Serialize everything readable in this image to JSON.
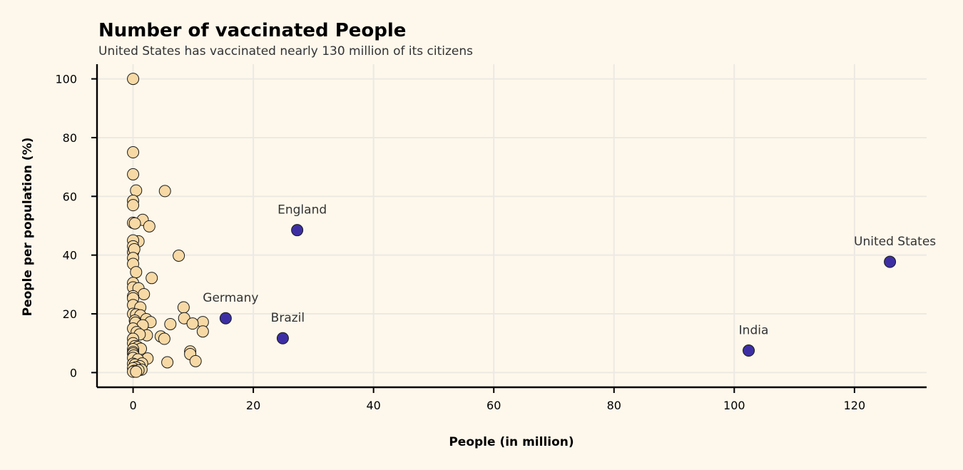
{
  "chart_data": {
    "type": "scatter",
    "title": "Number of vaccinated People",
    "subtitle": "United States has vaccinated nearly 130 million of its citizens",
    "xlabel": "People (in million)",
    "ylabel": "People per population (%)",
    "xlim": [
      -6,
      132
    ],
    "ylim": [
      -5,
      105
    ],
    "xticks": [
      0,
      20,
      40,
      60,
      80,
      100,
      120
    ],
    "yticks": [
      0,
      20,
      40,
      60,
      80,
      100
    ],
    "grid": true,
    "colors": {
      "background": "#fef8ec",
      "grid": "#ece9e4",
      "other_countries": "#f7d9a5",
      "highlight_countries": "#3d2fa3",
      "marker_edge": "#1a1a1a"
    },
    "series": [
      {
        "points": [
          [
            0,
            100
          ],
          [
            0,
            75
          ],
          [
            0,
            67.5
          ],
          [
            0.5,
            62
          ],
          [
            5.3,
            61.8
          ],
          [
            0,
            58.5
          ],
          [
            0,
            57
          ],
          [
            1.6,
            52
          ],
          [
            0,
            51
          ],
          [
            0.3,
            50.8
          ],
          [
            2.7,
            49.8
          ],
          [
            0.9,
            44.7
          ],
          [
            0,
            45
          ],
          [
            0,
            43
          ],
          [
            0,
            41
          ],
          [
            0.2,
            42
          ],
          [
            7.6,
            39.8
          ],
          [
            0,
            39
          ],
          [
            0,
            37
          ],
          [
            0.5,
            34.2
          ],
          [
            3.1,
            32.2
          ],
          [
            0,
            30.5
          ],
          [
            0,
            29
          ],
          [
            0.9,
            28.7
          ],
          [
            1.8,
            26.7
          ],
          [
            0,
            26
          ],
          [
            0,
            25.3
          ],
          [
            0,
            23
          ],
          [
            1.2,
            22.2
          ],
          [
            8.4,
            22.2
          ],
          [
            0,
            20
          ],
          [
            0.5,
            19.8
          ],
          [
            1.2,
            19.5
          ],
          [
            2.2,
            18.2
          ],
          [
            8.5,
            18.5
          ],
          [
            0.3,
            17.7
          ],
          [
            2.9,
            17.2
          ],
          [
            11.6,
            17.2
          ],
          [
            0.4,
            17
          ],
          [
            6.2,
            16.5
          ],
          [
            9.9,
            16.7
          ],
          [
            1.6,
            16.1
          ],
          [
            0,
            15
          ],
          [
            11.6,
            14
          ],
          [
            0.6,
            13.8
          ],
          [
            2.3,
            12.7
          ],
          [
            1.1,
            13
          ],
          [
            4.6,
            12.3
          ],
          [
            5.2,
            11.5
          ],
          [
            0,
            11.5
          ],
          [
            0,
            10
          ],
          [
            0.3,
            9
          ],
          [
            0.8,
            8.7
          ],
          [
            1.3,
            8.1
          ],
          [
            0,
            8
          ],
          [
            9.5,
            7.2
          ],
          [
            0,
            7
          ],
          [
            0,
            6.5
          ],
          [
            9.5,
            6.3
          ],
          [
            0.1,
            5.8
          ],
          [
            2.4,
            4.8
          ],
          [
            0,
            5
          ],
          [
            0.8,
            4.5
          ],
          [
            10.4,
            3.9
          ],
          [
            5.7,
            3.5
          ],
          [
            1.5,
            3.1
          ],
          [
            0,
            3
          ],
          [
            0.3,
            2.7
          ],
          [
            1.1,
            2.2
          ],
          [
            0.5,
            1.8
          ],
          [
            0,
            1.5
          ],
          [
            1.4,
            1
          ],
          [
            0.9,
            0.8
          ],
          [
            0.2,
            0.6
          ],
          [
            0,
            0.3
          ],
          [
            0.5,
            0.3
          ]
        ]
      },
      {
        "points": [
          [
            27.3,
            48.5
          ],
          [
            125.9,
            37.7
          ],
          [
            15.4,
            18.5
          ],
          [
            24.9,
            11.7
          ],
          [
            102.4,
            7.5
          ]
        ]
      }
    ],
    "annotations": [
      {
        "text": "England",
        "x": 27.3,
        "y": 48.5
      },
      {
        "text": "United States",
        "x": 125.9,
        "y": 37.7
      },
      {
        "text": "Germany",
        "x": 15.4,
        "y": 18.5
      },
      {
        "text": "Brazil",
        "x": 24.9,
        "y": 11.7
      },
      {
        "text": "India",
        "x": 102.4,
        "y": 7.5
      }
    ]
  }
}
